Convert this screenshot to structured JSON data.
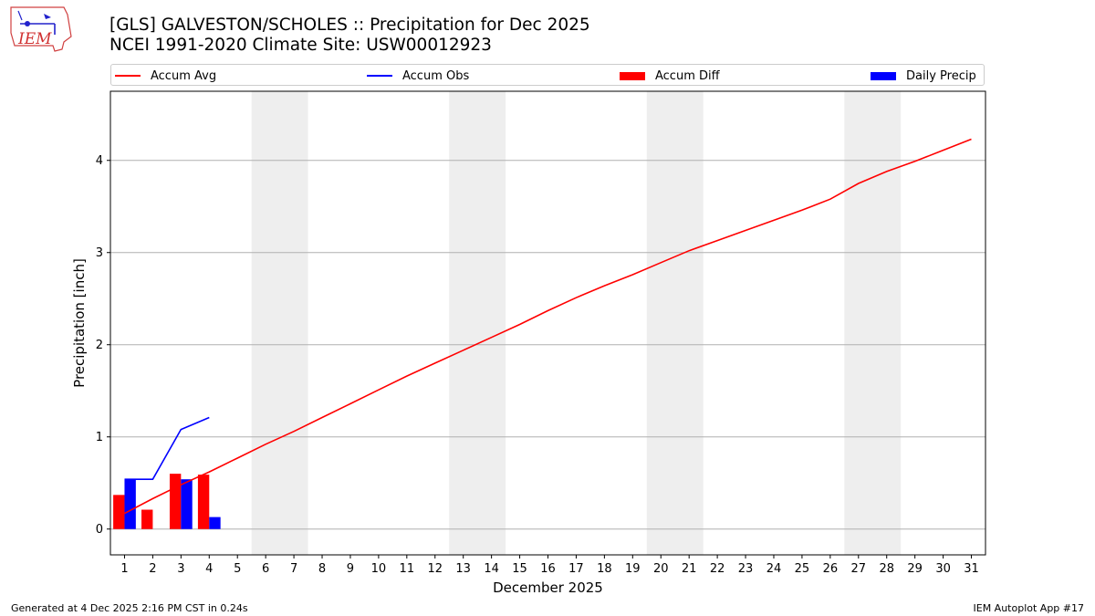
{
  "header": {
    "title_line1": "[GLS] GALVESTON/SCHOLES :: Precipitation for Dec 2025",
    "title_line2": "NCEI 1991-2020 Climate Site: USW00012923",
    "logo_text": "IEM"
  },
  "footer": {
    "generated": "Generated at 4 Dec 2025 2:16 PM CST in 0.24s",
    "app": "IEM Autoplot App #17"
  },
  "colors": {
    "avg": "#ff0000",
    "obs": "#0000ff",
    "diff": "#ff0000",
    "daily": "#0000ff",
    "weekend_band": "#eeeeee",
    "grid": "#b0b0b0"
  },
  "legend": {
    "accum_avg": "Accum Avg",
    "accum_obs": "Accum Obs",
    "accum_diff": "Accum Diff",
    "daily_precip": "Daily Precip"
  },
  "chart_data": {
    "type": "bar",
    "xlabel": "December 2025",
    "ylabel": "Precipitation [inch]",
    "xlim": [
      0.5,
      31.5
    ],
    "ylim": [
      -0.28,
      4.75
    ],
    "yticks": [
      0,
      1,
      2,
      3,
      4
    ],
    "days": [
      1,
      2,
      3,
      4,
      5,
      6,
      7,
      8,
      9,
      10,
      11,
      12,
      13,
      14,
      15,
      16,
      17,
      18,
      19,
      20,
      21,
      22,
      23,
      24,
      25,
      26,
      27,
      28,
      29,
      30,
      31
    ],
    "weekend_bands": [
      [
        6,
        7
      ],
      [
        13,
        14
      ],
      [
        20,
        21
      ],
      [
        27,
        28
      ]
    ],
    "grid": true,
    "legend_placement": "top, outside plot",
    "series": [
      {
        "name": "Accum Avg",
        "kind": "line",
        "x": [
          1,
          2,
          3,
          4,
          5,
          6,
          7,
          8,
          9,
          10,
          11,
          12,
          13,
          14,
          15,
          16,
          17,
          18,
          19,
          20,
          21,
          22,
          23,
          24,
          25,
          26,
          27,
          28,
          29,
          30,
          31
        ],
        "values": [
          0.17,
          0.33,
          0.48,
          0.62,
          0.77,
          0.92,
          1.06,
          1.21,
          1.36,
          1.51,
          1.66,
          1.8,
          1.94,
          2.08,
          2.22,
          2.37,
          2.51,
          2.64,
          2.76,
          2.89,
          3.02,
          3.13,
          3.24,
          3.35,
          3.46,
          3.58,
          3.75,
          3.88,
          3.99,
          4.11,
          4.23
        ]
      },
      {
        "name": "Accum Obs",
        "kind": "line",
        "x": [
          1,
          2,
          3,
          4
        ],
        "values": [
          0.54,
          0.54,
          1.08,
          1.21
        ]
      },
      {
        "name": "Accum Diff",
        "kind": "bar",
        "x": [
          1,
          2,
          3,
          4
        ],
        "values": [
          0.37,
          0.21,
          0.6,
          0.59
        ]
      },
      {
        "name": "Daily Precip",
        "kind": "bar",
        "x": [
          1,
          2,
          3,
          4
        ],
        "values": [
          0.54,
          0.0,
          0.54,
          0.13
        ]
      }
    ]
  }
}
